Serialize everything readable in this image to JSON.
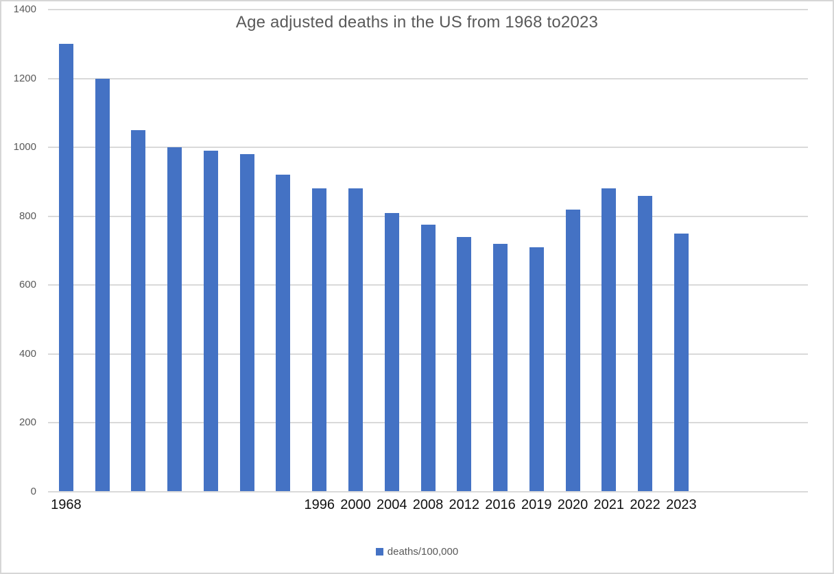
{
  "chart_data": {
    "type": "bar",
    "title": "Age adjusted deaths in the US from 1968 to2023",
    "legend_label": "deaths/100,000",
    "legend_position": "bottom-center",
    "grid": true,
    "ylim": [
      0,
      1400
    ],
    "yticks": [
      0,
      200,
      400,
      600,
      800,
      1000,
      1200,
      1400
    ],
    "trailing_empty_slots": 3,
    "bars": [
      {
        "label": "1968",
        "value": 1300
      },
      {
        "label": "",
        "value": 1200
      },
      {
        "label": "",
        "value": 1050
      },
      {
        "label": "",
        "value": 1000
      },
      {
        "label": "",
        "value": 990
      },
      {
        "label": "",
        "value": 980
      },
      {
        "label": "",
        "value": 920
      },
      {
        "label": "1996",
        "value": 880
      },
      {
        "label": "2000",
        "value": 880
      },
      {
        "label": "2004",
        "value": 810
      },
      {
        "label": "2008",
        "value": 775
      },
      {
        "label": "2012",
        "value": 740
      },
      {
        "label": "2016",
        "value": 720
      },
      {
        "label": "2019",
        "value": 710
      },
      {
        "label": "2020",
        "value": 820
      },
      {
        "label": "2021",
        "value": 880
      },
      {
        "label": "2022",
        "value": 860
      },
      {
        "label": "2023",
        "value": 750
      }
    ],
    "colors": {
      "bar": "#4472C4",
      "gridline": "#D9D9D9",
      "axis_line": "#D9D9D9",
      "title_text": "#595959",
      "y_label_text": "#595959",
      "x_label_text": "#111111",
      "legend_text": "#595959",
      "frame_border": "#D6D6D6"
    }
  }
}
